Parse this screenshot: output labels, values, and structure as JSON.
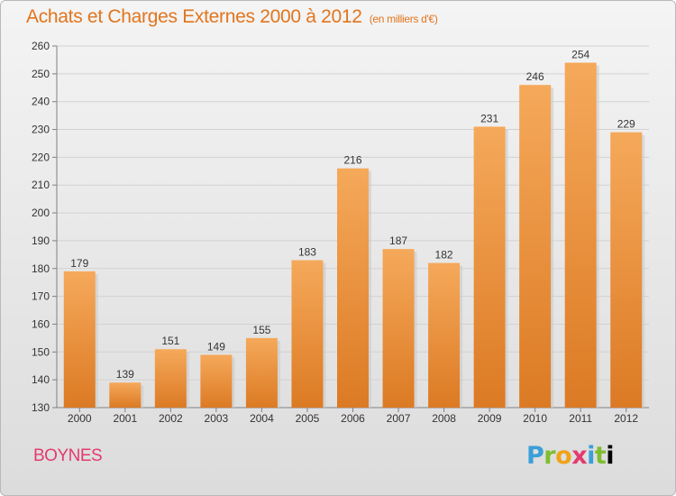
{
  "header": {
    "title": "Achats et Charges Externes 2000 à 2012",
    "unit": "(en milliers d'€)"
  },
  "place": "BOYNES",
  "logo": {
    "letters": [
      "P",
      "r",
      "o",
      "x",
      "i",
      "t",
      "i"
    ]
  },
  "colors": {
    "title": "#e2751d",
    "place": "#e33b6f",
    "bar_light": "#f5a95a",
    "bar_dark": "#dc7a24"
  },
  "chart_data": {
    "type": "bar",
    "categories": [
      "2000",
      "2001",
      "2002",
      "2003",
      "2004",
      "2005",
      "2006",
      "2007",
      "2008",
      "2009",
      "2010",
      "2011",
      "2012"
    ],
    "values": [
      179,
      139,
      151,
      149,
      155,
      183,
      216,
      187,
      182,
      231,
      246,
      254,
      229
    ],
    "ylim": [
      130,
      260
    ],
    "yticks": [
      130,
      140,
      150,
      160,
      170,
      180,
      190,
      200,
      210,
      220,
      230,
      240,
      250,
      260
    ],
    "grid": true,
    "data_labels": true
  }
}
